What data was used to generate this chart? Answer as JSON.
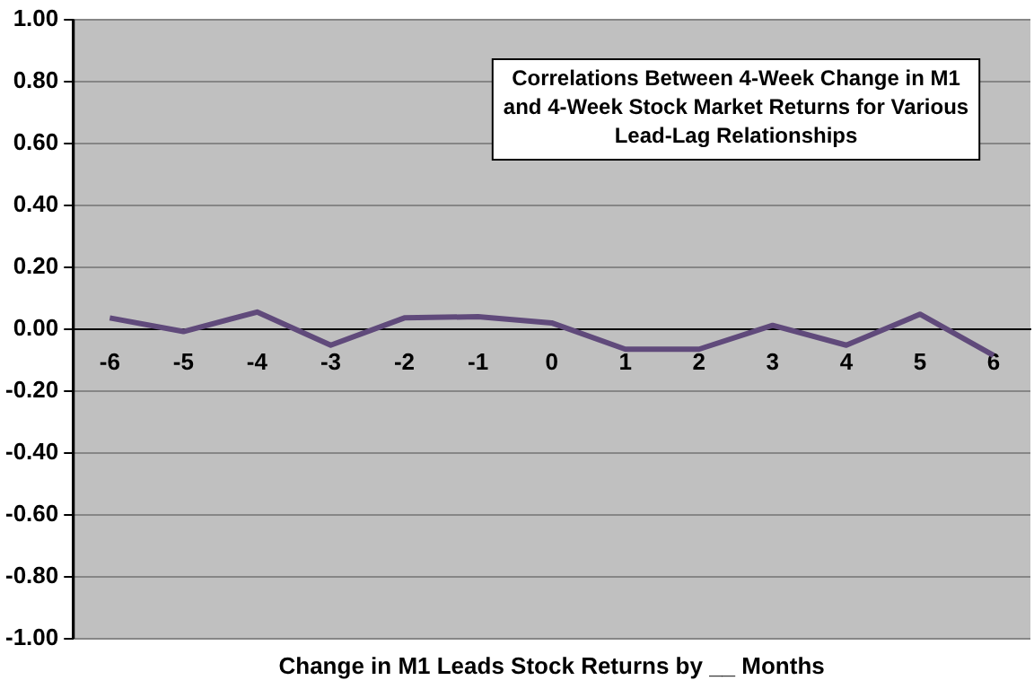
{
  "chart_data": {
    "type": "line",
    "title": "Correlations Between 4-Week Change in M1 and 4-Week Stock Market Returns for Various Lead-Lag Relationships",
    "xlabel": "Change in M1 Leads Stock Returns by __ Months",
    "categories": [
      "-6",
      "-5",
      "-4",
      "-3",
      "-2",
      "-1",
      "0",
      "1",
      "2",
      "3",
      "4",
      "5",
      "6"
    ],
    "series": [
      {
        "color": "#604a7b",
        "values": [
          0.036,
          -0.008,
          0.055,
          -0.052,
          0.036,
          0.04,
          0.02,
          -0.065,
          -0.065,
          0.012,
          -0.052,
          0.048,
          -0.085
        ]
      }
    ],
    "ylim": [
      -1,
      1
    ],
    "yticks": [
      {
        "value": -1,
        "label": "-1.00"
      },
      {
        "value": -0.8,
        "label": "-0.80"
      },
      {
        "value": -0.6,
        "label": "-0.60"
      },
      {
        "value": -0.4,
        "label": "-0.40"
      },
      {
        "value": -0.2,
        "label": "-0.20"
      },
      {
        "value": 0,
        "label": "0.00"
      },
      {
        "value": 0.2,
        "label": "0.20"
      },
      {
        "value": 0.4,
        "label": "0.40"
      },
      {
        "value": 0.6,
        "label": "0.60"
      },
      {
        "value": 0.8,
        "label": "0.80"
      },
      {
        "value": 1,
        "label": "1.00"
      }
    ],
    "grid": "y",
    "legend": false,
    "marker": "none",
    "line_style": "solid"
  }
}
